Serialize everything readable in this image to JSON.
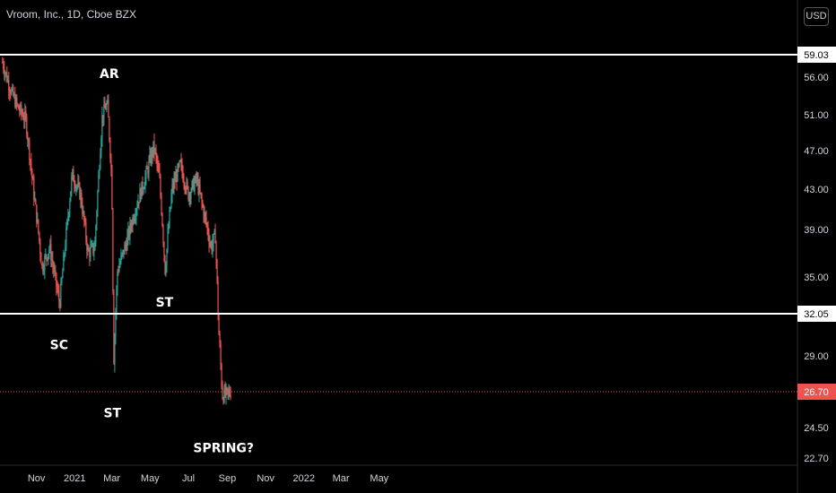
{
  "header": {
    "title": "Vroom, Inc., 1D, Cboe BZX",
    "currency_button": "USD"
  },
  "chart_data": {
    "type": "candlestick",
    "ylim": [
      22.7,
      60.8
    ],
    "y_ticks": [
      "56.00",
      "51.00",
      "47.00",
      "43.00",
      "39.00",
      "35.00",
      "29.00",
      "24.50",
      "22.70"
    ],
    "x_ticks": [
      "Nov",
      "2021",
      "Mar",
      "May",
      "Jul",
      "Sep",
      "Nov",
      "2022",
      "Mar",
      "May"
    ],
    "levels": [
      {
        "value": 59.03,
        "label": "59.03",
        "style": "solid",
        "color": "#ffffff"
      },
      {
        "value": 32.05,
        "label": "32.05",
        "style": "solid",
        "color": "#ffffff"
      },
      {
        "value": 26.7,
        "label": "26.70",
        "style": "dotted",
        "color": "#ef5350"
      }
    ],
    "annotations": [
      {
        "text": "AR",
        "date": "2021-02-25",
        "price": 56.5
      },
      {
        "text": "SC",
        "date": "2020-12-07",
        "price": 29.8
      },
      {
        "text": "ST",
        "date": "2021-03-02",
        "price": 25.4
      },
      {
        "text": "ST",
        "date": "2021-05-24",
        "price": 33.0
      },
      {
        "text": "SPRING?",
        "date": "2021-08-26",
        "price": 23.3
      }
    ],
    "colors": {
      "up": "#26a69a",
      "down": "#ef5350",
      "background": "#000000"
    },
    "close_path": [
      [
        "2020-09-08",
        58.0
      ],
      [
        "2020-09-20",
        54.5
      ],
      [
        "2020-10-02",
        52.0
      ],
      [
        "2020-10-15",
        50.5
      ],
      [
        "2020-10-28",
        42.5
      ],
      [
        "2020-11-10",
        35.8
      ],
      [
        "2020-11-22",
        37.5
      ],
      [
        "2020-12-08",
        32.8
      ],
      [
        "2020-12-20",
        39.5
      ],
      [
        "2020-12-28",
        44.5
      ],
      [
        "2021-01-10",
        42.5
      ],
      [
        "2021-01-22",
        37.0
      ],
      [
        "2021-02-02",
        37.5
      ],
      [
        "2021-02-14",
        51.0
      ],
      [
        "2021-02-22",
        52.5
      ],
      [
        "2021-03-01",
        44.0
      ],
      [
        "2021-03-04",
        28.5
      ],
      [
        "2021-03-10",
        35.5
      ],
      [
        "2021-03-25",
        38.0
      ],
      [
        "2021-04-10",
        41.5
      ],
      [
        "2021-04-25",
        44.5
      ],
      [
        "2021-05-07",
        47.5
      ],
      [
        "2021-05-16",
        44.0
      ],
      [
        "2021-05-25",
        35.5
      ],
      [
        "2021-06-05",
        43.0
      ],
      [
        "2021-06-18",
        45.5
      ],
      [
        "2021-07-01",
        42.5
      ],
      [
        "2021-07-14",
        44.0
      ],
      [
        "2021-07-28",
        40.0
      ],
      [
        "2021-08-06",
        37.5
      ],
      [
        "2021-08-13",
        38.5
      ],
      [
        "2021-08-18",
        31.0
      ],
      [
        "2021-08-24",
        26.5
      ],
      [
        "2021-08-30",
        26.5
      ],
      [
        "2021-09-07",
        26.7
      ]
    ]
  }
}
